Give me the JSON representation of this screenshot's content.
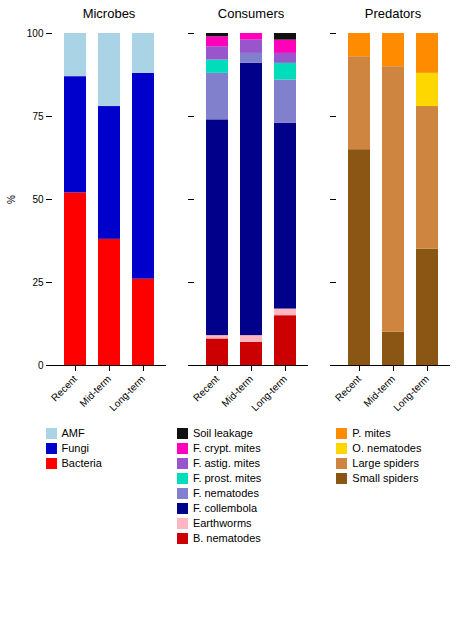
{
  "chart_data": [
    {
      "type": "bar",
      "title": "Microbes",
      "stacked": true,
      "legend": "bottom",
      "categories": [
        "Recent",
        "Mid-term",
        "Long-term"
      ],
      "ylabel": "%",
      "ylim": [
        0,
        100
      ],
      "yticks": [
        0,
        25,
        50,
        75,
        100
      ],
      "grid": false,
      "series": [
        {
          "name": "Bacteria",
          "color": "#ff0000",
          "values": [
            52,
            38,
            26
          ]
        },
        {
          "name": "Fungi",
          "color": "#0000cc",
          "values": [
            35,
            40,
            62
          ]
        },
        {
          "name": "AMF",
          "color": "#aad4e6",
          "values": [
            13,
            22,
            12
          ]
        }
      ]
    },
    {
      "type": "bar",
      "title": "Consumers",
      "stacked": true,
      "legend": "bottom",
      "tick_labels": "x",
      "categories": [
        "Recent",
        "Mid-term",
        "Long-term"
      ],
      "ylim": [
        0,
        100
      ],
      "yticks": [
        0,
        25,
        50,
        75,
        100
      ],
      "grid": false,
      "series": [
        {
          "name": "B. nematodes",
          "color": "#cc0000",
          "values": [
            8,
            7,
            15
          ]
        },
        {
          "name": "Earthworms",
          "color": "#ffb6c1",
          "values": [
            1,
            2,
            2
          ]
        },
        {
          "name": "F. collembola",
          "color": "#00008b",
          "values": [
            65,
            82,
            56
          ]
        },
        {
          "name": "F. nematodes",
          "color": "#8080cc",
          "values": [
            14,
            3,
            13
          ]
        },
        {
          "name": "F. prost. mites",
          "color": "#00ddbb",
          "values": [
            4,
            0,
            5
          ]
        },
        {
          "name": "F. astig. mites",
          "color": "#9955cc",
          "values": [
            4,
            4,
            3
          ]
        },
        {
          "name": "F. crypt. mites",
          "color": "#ff00bb",
          "values": [
            3,
            2,
            4
          ]
        },
        {
          "name": "Soil leakage",
          "color": "#111111",
          "values": [
            1,
            0,
            2
          ]
        }
      ]
    },
    {
      "type": "bar",
      "title": "Predators",
      "stacked": true,
      "legend": "bottom",
      "tick_labels": "x",
      "categories": [
        "Recent",
        "Mid-term",
        "Long-term"
      ],
      "ylim": [
        0,
        100
      ],
      "yticks": [
        0,
        25,
        50,
        75,
        100
      ],
      "grid": false,
      "series": [
        {
          "name": "Small spiders",
          "color": "#8B5513",
          "values": [
            65,
            10,
            35
          ]
        },
        {
          "name": "Large spiders",
          "color": "#cd8540",
          "values": [
            28,
            80,
            43
          ]
        },
        {
          "name": "O. nematodes",
          "color": "#ffd700",
          "values": [
            0,
            0,
            10
          ]
        },
        {
          "name": "P. mites",
          "color": "#ff8c00",
          "values": [
            7,
            10,
            12
          ]
        }
      ]
    }
  ]
}
